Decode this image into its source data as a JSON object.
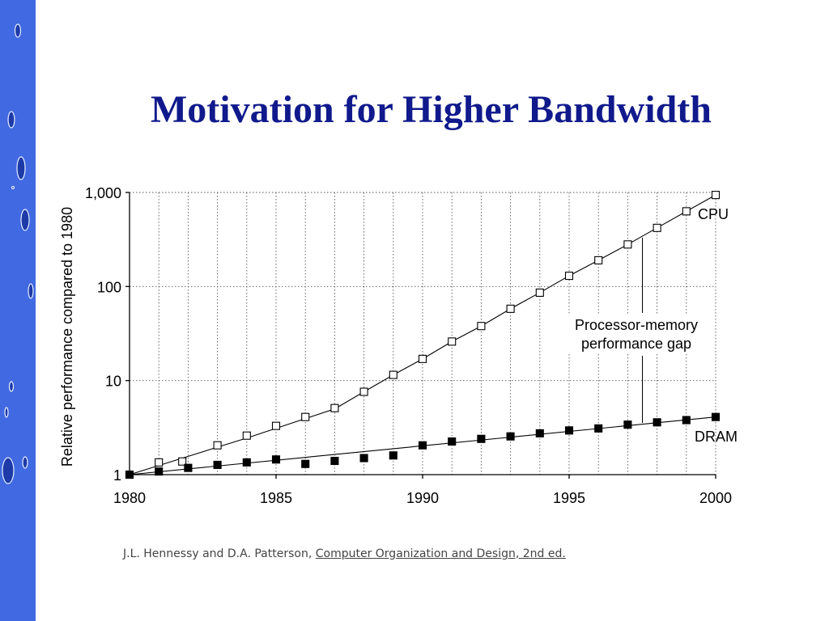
{
  "slide": {
    "title": "Motivation for Higher Bandwidth",
    "citation_authors": "J.L. Hennessy and D.A. Patterson,",
    "citation_book": "Computer Organization and Design, 2nd ed.",
    "accent_color": "#4169e1",
    "title_color": "#101a8c"
  },
  "chart_data": {
    "type": "line",
    "title": "",
    "xlabel": "",
    "ylabel": "Relative performance compared to 1980",
    "y_scale": "log",
    "xlim": [
      1980,
      2000
    ],
    "ylim": [
      1,
      1000
    ],
    "grid": true,
    "x_ticks": [
      1980,
      1985,
      1990,
      1995,
      2000
    ],
    "x_tick_labels": [
      "1980",
      "1985",
      "1990",
      "1995",
      "2000"
    ],
    "y_ticks": [
      1,
      10,
      100,
      1000
    ],
    "y_tick_labels": [
      "1",
      "10",
      "100",
      "1,000"
    ],
    "series": [
      {
        "name": "CPU",
        "marker": "open-square",
        "points": [
          [
            1980,
            1.0
          ],
          [
            1981,
            1.35
          ],
          [
            1981.8,
            1.38
          ],
          [
            1983,
            2.05
          ],
          [
            1984,
            2.6
          ],
          [
            1985,
            3.3
          ],
          [
            1986,
            4.1
          ],
          [
            1987,
            5.1
          ],
          [
            1988,
            7.6
          ],
          [
            1989,
            11.5
          ],
          [
            1990,
            17
          ],
          [
            1991,
            26
          ],
          [
            1992,
            38
          ],
          [
            1993,
            58
          ],
          [
            1994,
            86
          ],
          [
            1995,
            130
          ],
          [
            1996,
            190
          ],
          [
            1997,
            280
          ],
          [
            1998,
            420
          ],
          [
            1999,
            630
          ],
          [
            2000,
            940
          ]
        ],
        "trend": [
          [
            1980,
            1.0
          ],
          [
            1984,
            2.45
          ],
          [
            1987,
            5.0
          ],
          [
            1988,
            7.6
          ],
          [
            1989,
            11.5
          ],
          [
            1990,
            17
          ],
          [
            1991,
            26
          ],
          [
            1992,
            38
          ],
          [
            1993,
            58
          ],
          [
            1994,
            86
          ],
          [
            1995,
            130
          ],
          [
            1996,
            190
          ],
          [
            1997,
            280
          ],
          [
            1998,
            420
          ],
          [
            1999,
            630
          ],
          [
            2000,
            940
          ]
        ]
      },
      {
        "name": "DRAM",
        "marker": "filled-square",
        "points": [
          [
            1980,
            1.0
          ],
          [
            1981,
            1.08
          ],
          [
            1982,
            1.18
          ],
          [
            1983,
            1.27
          ],
          [
            1984,
            1.35
          ],
          [
            1985,
            1.45
          ],
          [
            1986,
            1.3
          ],
          [
            1987,
            1.4
          ],
          [
            1988,
            1.5
          ],
          [
            1989,
            1.6
          ],
          [
            1990,
            2.05
          ],
          [
            1991,
            2.25
          ],
          [
            1992,
            2.4
          ],
          [
            1993,
            2.55
          ],
          [
            1994,
            2.75
          ],
          [
            1995,
            2.95
          ],
          [
            1996,
            3.1
          ],
          [
            1997,
            3.4
          ],
          [
            1998,
            3.6
          ],
          [
            1999,
            3.8
          ],
          [
            2000,
            4.1
          ]
        ],
        "trend": [
          [
            1980,
            1.0
          ],
          [
            2000,
            4.1
          ]
        ]
      }
    ],
    "annotations": [
      {
        "text": "Processor-memory",
        "x": 1997.5
      },
      {
        "text": "performance gap",
        "x": 1997.5
      }
    ]
  }
}
